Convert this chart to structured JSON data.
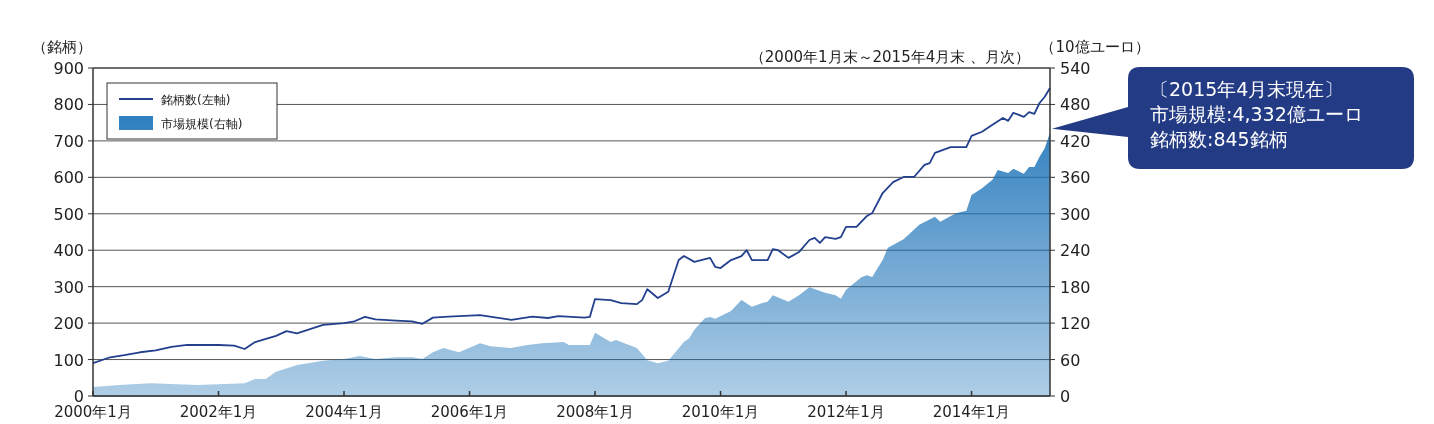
{
  "chart_data": {
    "type": "line",
    "subtitle": "（2000年1月末～2015年4月末 、月次）",
    "ylabel": "（銘柄）",
    "y2label": "（10億ユーロ）",
    "annotations": [
      "〔2015年4月末現在〕",
      "市場規模:4,332億ユーロ",
      "銘柄数:845銘柄"
    ],
    "xlim": [
      "2000-01",
      "2015-04"
    ],
    "xticks": [
      {
        "value": "2000-01",
        "label": "2000年1月"
      },
      {
        "value": "2002-01",
        "label": "2002年1月"
      },
      {
        "value": "2004-01",
        "label": "2004年1月"
      },
      {
        "value": "2006-01",
        "label": "2006年1月"
      },
      {
        "value": "2008-01",
        "label": "2008年1月"
      },
      {
        "value": "2010-01",
        "label": "2010年1月"
      },
      {
        "value": "2012-01",
        "label": "2012年1月"
      },
      {
        "value": "2014-01",
        "label": "2014年1月"
      }
    ],
    "ylim": [
      0,
      900
    ],
    "yticks": [
      0,
      100,
      200,
      300,
      400,
      500,
      600,
      700,
      800,
      900
    ],
    "y2lim": [
      0,
      540
    ],
    "y2ticks": [
      0,
      60,
      120,
      180,
      240,
      300,
      360,
      420,
      480,
      540
    ],
    "grid": "y",
    "legend": "top left",
    "series": [
      {
        "name": "市場規模(右軸)",
        "type": "area",
        "axis": "y2",
        "color": "#1a72b8",
        "x": [
          "2000-01",
          "2000-06",
          "2000-12",
          "2001-09",
          "2002-06",
          "2002-08",
          "2002-10",
          "2002-12",
          "2003-03",
          "2003-04",
          "2003-09",
          "2004-01",
          "2004-04",
          "2004-07",
          "2004-11",
          "2005-02",
          "2005-04",
          "2005-06",
          "2005-08",
          "2005-11",
          "2006-03",
          "2006-05",
          "2006-09",
          "2006-12",
          "2007-03",
          "2007-07",
          "2007-08",
          "2007-12",
          "2008-01",
          "2008-04",
          "2008-05",
          "2008-09",
          "2008-11",
          "2009-01",
          "2009-03",
          "2009-06",
          "2009-07",
          "2009-08",
          "2009-10",
          "2009-11",
          "2009-12",
          "2010-03",
          "2010-05",
          "2010-07",
          "2010-09",
          "2010-10",
          "2010-11",
          "2011-02",
          "2011-04",
          "2011-06",
          "2011-09",
          "2011-11",
          "2011-12",
          "2012-01",
          "2012-04",
          "2012-05",
          "2012-06",
          "2012-08",
          "2012-09",
          "2012-12",
          "2013-03",
          "2013-06",
          "2013-07",
          "2013-10",
          "2013-12",
          "2014-01",
          "2014-03",
          "2014-05",
          "2014-06",
          "2014-08",
          "2014-09",
          "2014-11",
          "2014-12",
          "2015-01",
          "2015-02",
          "2015-03",
          "2015-04"
        ],
        "values": [
          15,
          18,
          21,
          18,
          21,
          28,
          28,
          40,
          48,
          51,
          58,
          61,
          66,
          61,
          64,
          64,
          61,
          72,
          79,
          72,
          87,
          82,
          79,
          84,
          87,
          89,
          84,
          84,
          104,
          89,
          92,
          79,
          59,
          54,
          58,
          89,
          95,
          109,
          128,
          130,
          127,
          140,
          158,
          147,
          153,
          155,
          166,
          155,
          166,
          179,
          170,
          166,
          160,
          175,
          196,
          199,
          196,
          224,
          244,
          258,
          282,
          295,
          287,
          301,
          305,
          331,
          342,
          356,
          372,
          367,
          374,
          366,
          377,
          377,
          394,
          408,
          433.2
        ]
      },
      {
        "name": "銘柄数(左軸)",
        "axis": "y",
        "color": "#23408e",
        "x": [
          "2000-01",
          "2000-04",
          "2000-07",
          "2000-10",
          "2001-01",
          "2001-04",
          "2001-07",
          "2002-01",
          "2002-04",
          "2002-06",
          "2002-08",
          "2002-12",
          "2003-02",
          "2003-04",
          "2003-09",
          "2004-01",
          "2004-03",
          "2004-05",
          "2004-07",
          "2004-11",
          "2005-02",
          "2005-04",
          "2005-06",
          "2005-09",
          "2006-03",
          "2006-09",
          "2007-01",
          "2007-04",
          "2007-06",
          "2007-11",
          "2007-12",
          "2008-01",
          "2008-04",
          "2008-06",
          "2008-09",
          "2008-10",
          "2008-11",
          "2009-01",
          "2009-03",
          "2009-05",
          "2009-06",
          "2009-08",
          "2009-11",
          "2009-12",
          "2010-01",
          "2010-03",
          "2010-05",
          "2010-06",
          "2010-07",
          "2010-10",
          "2010-11",
          "2010-12",
          "2011-02",
          "2011-04",
          "2011-06",
          "2011-07",
          "2011-08",
          "2011-09",
          "2011-11",
          "2011-12",
          "2012-01",
          "2012-03",
          "2012-05",
          "2012-06",
          "2012-08",
          "2012-10",
          "2012-12",
          "2013-02",
          "2013-04",
          "2013-05",
          "2013-06",
          "2013-09",
          "2013-12",
          "2014-01",
          "2014-03",
          "2014-05",
          "2014-07",
          "2014-08",
          "2014-09",
          "2014-11",
          "2014-12",
          "2015-01",
          "2015-02",
          "2015-03",
          "2015-04"
        ],
        "values": [
          90,
          105,
          112,
          120,
          125,
          135,
          140,
          140,
          138,
          129,
          148,
          165,
          178,
          172,
          195,
          200,
          205,
          217,
          210,
          207,
          205,
          198,
          215,
          218,
          222,
          209,
          218,
          214,
          219,
          215,
          217,
          266,
          263,
          255,
          252,
          263,
          293,
          269,
          286,
          373,
          384,
          368,
          379,
          354,
          351,
          373,
          384,
          400,
          373,
          373,
          403,
          400,
          379,
          395,
          428,
          434,
          420,
          436,
          431,
          436,
          464,
          464,
          494,
          502,
          557,
          587,
          601,
          601,
          634,
          639,
          667,
          683,
          683,
          714,
          725,
          744,
          763,
          755,
          777,
          766,
          779,
          774,
          804,
          821,
          845
        ]
      }
    ]
  }
}
